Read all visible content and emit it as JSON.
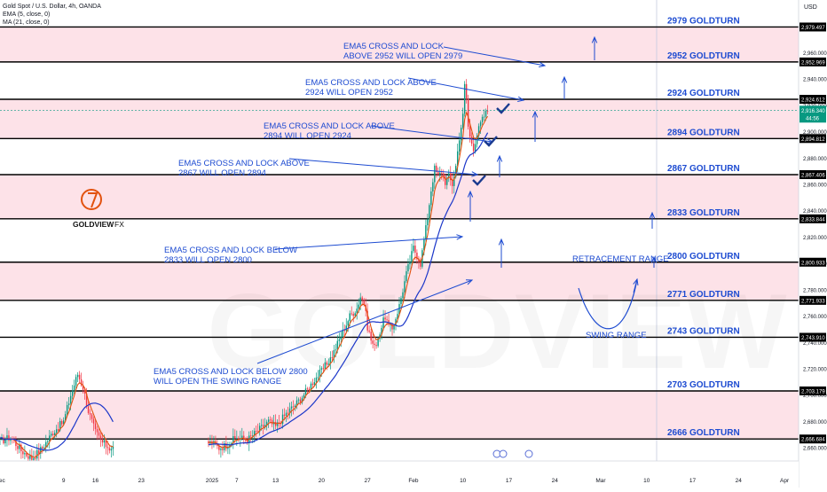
{
  "header": {
    "title": "Gold Spot / U.S. Dollar, 4h, OANDA",
    "ema": "EMA (5, close, 0)",
    "ma": "MA (21, close, 0)",
    "currency": "USD"
  },
  "brand": {
    "name": "GOLDVIEW",
    "suffix": "FX",
    "watermark": "GOLDVIEW"
  },
  "colors": {
    "zone": "#fde2e8",
    "annotation": "#1d4bd1",
    "ema": "#e2520f",
    "ma": "#1c37c9",
    "up": "#089981",
    "down": "#f23645"
  },
  "chart_data": {
    "type": "candlestick",
    "title": "Gold Spot / U.S. Dollar, 4h, OANDA",
    "ylim": [
      2650,
      3000
    ],
    "y_ticks": [
      2660,
      2680,
      2700,
      2720,
      2740,
      2760,
      2780,
      2800,
      2820,
      2840,
      2860,
      2880,
      2900,
      2920,
      2940,
      2960
    ],
    "x_ticks": [
      {
        "i": 0,
        "label": "Dec"
      },
      {
        "i": 36,
        "label": "9"
      },
      {
        "i": 54,
        "label": "16"
      },
      {
        "i": 80,
        "label": "23"
      },
      {
        "i": 120,
        "label": "2025"
      },
      {
        "i": 134,
        "label": "7"
      },
      {
        "i": 156,
        "label": "13"
      },
      {
        "i": 182,
        "label": "20"
      },
      {
        "i": 208,
        "label": "27"
      },
      {
        "i": 234,
        "label": "Feb"
      },
      {
        "i": 262,
        "label": "10"
      },
      {
        "i": 288,
        "label": "17"
      },
      {
        "i": 314,
        "label": "24"
      },
      {
        "i": 340,
        "label": "Mar"
      },
      {
        "i": 366,
        "label": "10"
      },
      {
        "i": 392,
        "label": "17"
      },
      {
        "i": 418,
        "label": "24"
      },
      {
        "i": 444,
        "label": "Apr"
      }
    ],
    "levels": [
      {
        "value": 2979.497,
        "label": "2979 GOLDTURN",
        "price": "2,979.497"
      },
      {
        "value": 2952.969,
        "label": "2952 GOLDTURN",
        "price": "2,952.969"
      },
      {
        "value": 2924.612,
        "label": "2924 GOLDTURN",
        "price": "2,924.612"
      },
      {
        "value": 2894.812,
        "label": "2894 GOLDTURN",
        "price": "2,894.812"
      },
      {
        "value": 2867.406,
        "label": "2867 GOLDTURN",
        "price": "2,867.406"
      },
      {
        "value": 2833.844,
        "label": "2833 GOLDTURN",
        "price": "2,833.844"
      },
      {
        "value": 2800.933,
        "label": "2800 GOLDTURN",
        "price": "2,800.933"
      },
      {
        "value": 2771.933,
        "label": "2771 GOLDTURN",
        "price": "2,771.933"
      },
      {
        "value": 2743.91,
        "label": "2743 GOLDTURN",
        "price": "2,743.910"
      },
      {
        "value": 2703.179,
        "label": "2703 GOLDTURN",
        "price": "2,703.179"
      },
      {
        "value": 2666.684,
        "label": "2666 GOLDTURN",
        "price": "2,666.684"
      }
    ],
    "zones": [
      [
        2952.969,
        2979.497
      ],
      [
        2894.812,
        2924.612
      ],
      [
        2833.844,
        2867.406
      ],
      [
        2771.933,
        2800.933
      ],
      [
        2666.684,
        2703.179
      ]
    ],
    "current_price": {
      "value": 2916.34,
      "label": "2,916.340",
      "countdown": "44:56"
    },
    "anchors": [
      {
        "i": 0,
        "v": 2665
      },
      {
        "i": 6,
        "v": 2668
      },
      {
        "i": 12,
        "v": 2658
      },
      {
        "i": 18,
        "v": 2652
      },
      {
        "i": 24,
        "v": 2660
      },
      {
        "i": 30,
        "v": 2672
      },
      {
        "i": 36,
        "v": 2680
      },
      {
        "i": 40,
        "v": 2700
      },
      {
        "i": 44,
        "v": 2716
      },
      {
        "i": 47,
        "v": 2706
      },
      {
        "i": 50,
        "v": 2688
      },
      {
        "i": 54,
        "v": 2672
      },
      {
        "i": 58,
        "v": 2664
      },
      {
        "i": 62,
        "v": 2660
      },
      {
        "i": 120,
        "v": 2664
      },
      {
        "i": 124,
        "v": 2660
      },
      {
        "i": 128,
        "v": 2662
      },
      {
        "i": 134,
        "v": 2668
      },
      {
        "i": 140,
        "v": 2666
      },
      {
        "i": 146,
        "v": 2673
      },
      {
        "i": 152,
        "v": 2680
      },
      {
        "i": 156,
        "v": 2676
      },
      {
        "i": 162,
        "v": 2686
      },
      {
        "i": 168,
        "v": 2694
      },
      {
        "i": 174,
        "v": 2704
      },
      {
        "i": 178,
        "v": 2712
      },
      {
        "i": 182,
        "v": 2718
      },
      {
        "i": 188,
        "v": 2730
      },
      {
        "i": 194,
        "v": 2748
      },
      {
        "i": 198,
        "v": 2760
      },
      {
        "i": 202,
        "v": 2766
      },
      {
        "i": 204,
        "v": 2775
      },
      {
        "i": 206,
        "v": 2770
      },
      {
        "i": 208,
        "v": 2752
      },
      {
        "i": 210,
        "v": 2742
      },
      {
        "i": 212,
        "v": 2736
      },
      {
        "i": 214,
        "v": 2744
      },
      {
        "i": 216,
        "v": 2752
      },
      {
        "i": 218,
        "v": 2760
      },
      {
        "i": 220,
        "v": 2752
      },
      {
        "i": 222,
        "v": 2750
      },
      {
        "i": 226,
        "v": 2768
      },
      {
        "i": 230,
        "v": 2792
      },
      {
        "i": 234,
        "v": 2812
      },
      {
        "i": 236,
        "v": 2806
      },
      {
        "i": 238,
        "v": 2800
      },
      {
        "i": 240,
        "v": 2818
      },
      {
        "i": 242,
        "v": 2835
      },
      {
        "i": 244,
        "v": 2856
      },
      {
        "i": 246,
        "v": 2872
      },
      {
        "i": 248,
        "v": 2866
      },
      {
        "i": 250,
        "v": 2870
      },
      {
        "i": 252,
        "v": 2862
      },
      {
        "i": 254,
        "v": 2866
      },
      {
        "i": 256,
        "v": 2860
      },
      {
        "i": 258,
        "v": 2874
      },
      {
        "i": 260,
        "v": 2896
      },
      {
        "i": 262,
        "v": 2912
      },
      {
        "i": 263,
        "v": 2935
      },
      {
        "i": 264,
        "v": 2925
      },
      {
        "i": 265,
        "v": 2904
      },
      {
        "i": 266,
        "v": 2896
      },
      {
        "i": 268,
        "v": 2888
      },
      {
        "i": 270,
        "v": 2898
      },
      {
        "i": 272,
        "v": 2906
      },
      {
        "i": 274,
        "v": 2912
      },
      {
        "i": 276,
        "v": 2916
      }
    ],
    "annotations": [
      {
        "lines": [
          "EMA5 CROSS AND LOCK",
          "ABOVE 2952 WILL OPEN 2979"
        ]
      },
      {
        "lines": [
          "EMA5 CROSS AND LOCK ABOVE",
          "2924 WILL OPEN 2952"
        ]
      },
      {
        "lines": [
          "EMA5 CROSS AND LOCK ABOVE",
          "2894 WILL OPEN 2924"
        ]
      },
      {
        "lines": [
          "EMA5 CROSS AND LOCK ABOVE",
          "2867 WILL OPEN 2894"
        ]
      },
      {
        "lines": [
          "EMA5 CROSS AND LOCK BELOW",
          "2833 WILL OPEN 2800"
        ]
      },
      {
        "lines": [
          "EMA5 CROSS AND LOCK BELOW 2800",
          "WILL OPEN THE SWING RANGE"
        ]
      },
      {
        "lines": [
          "RETRACEMENT RANGE"
        ]
      },
      {
        "lines": [
          "SWING RANGE"
        ]
      }
    ]
  }
}
